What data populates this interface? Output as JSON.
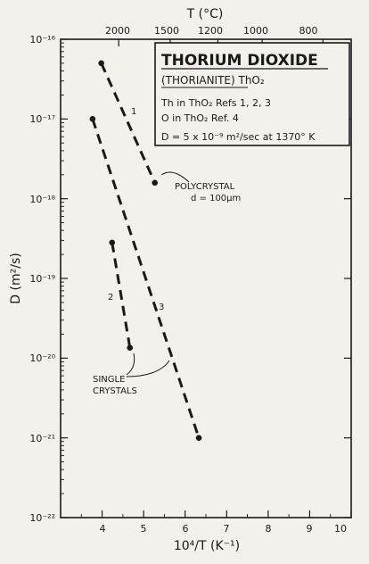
{
  "chart_data": {
    "type": "line",
    "xlabel": "10⁴/T (K⁻¹)",
    "ylabel": "D (m²/s)",
    "top_axis_label": "T (°C)",
    "xlim": [
      3,
      10
    ],
    "ylim_log10": [
      -22,
      -16
    ],
    "scale_y": "log",
    "x_ticks": [
      "4",
      "5",
      "6",
      "7",
      "8",
      "9",
      "10"
    ],
    "y_ticks": [
      "10⁻¹⁶",
      "10⁻¹⁷",
      "10⁻¹⁸",
      "10⁻¹⁹",
      "10⁻²⁰",
      "10⁻²¹",
      "10⁻²²"
    ],
    "top_ticks": [
      "2000",
      "1500",
      "1200",
      "1000",
      "800"
    ],
    "legend": {
      "title": "THORIUM DIOXIDE",
      "subtitle": "(THORIANITE) ThO₂",
      "lines": [
        "Th in ThO₂  Refs 1, 2, 3",
        "O in ThO₂  Ref. 4",
        "D = 5 x 10⁻⁹ m²/sec at 1370° K"
      ]
    },
    "series": [
      {
        "label": "1",
        "x": [
          3.98,
          5.27
        ],
        "log10_y": [
          -16.3,
          -17.8
        ]
      },
      {
        "label": "2",
        "x": [
          4.24,
          4.67
        ],
        "log10_y": [
          -18.55,
          -19.87
        ]
      },
      {
        "label": "3",
        "x": [
          3.77,
          6.33
        ],
        "log10_y": [
          -17.0,
          -21.0
        ]
      }
    ],
    "annotations": [
      {
        "text": "POLYCRYSTAL",
        "text2": "d = 100µm"
      },
      {
        "text": "SINGLE",
        "text2": "CRYSTALS"
      }
    ]
  }
}
